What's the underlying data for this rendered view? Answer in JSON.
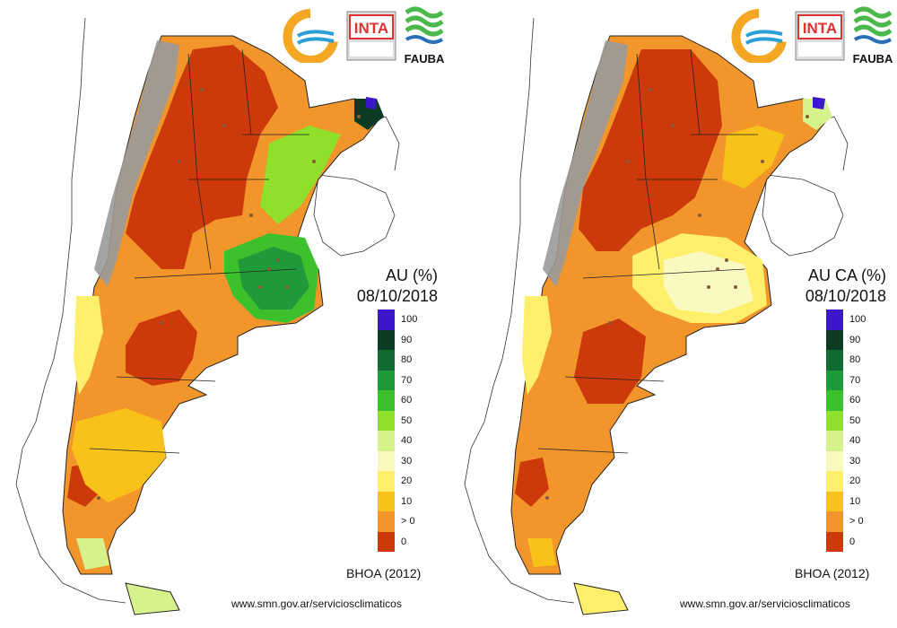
{
  "maps": [
    {
      "title": "AU (%)",
      "date": "08/10/2018",
      "source": "BHOA (2012)",
      "url": "www.smn.gov.ar/serviciosclimaticos"
    },
    {
      "title": "AU CA (%)",
      "date": "08/10/2018",
      "source": "BHOA (2012)",
      "url": "www.smn.gov.ar/serviciosclimaticos"
    }
  ],
  "logos": {
    "inta_text": "INTA",
    "fauba_text": "FAUBA"
  },
  "legend": {
    "title": "AU (%)",
    "classes": [
      {
        "label": "100",
        "color": "#3d18c8"
      },
      {
        "label": "90",
        "color": "#0c3d24"
      },
      {
        "label": "80",
        "color": "#0f6b32"
      },
      {
        "label": "70",
        "color": "#1f9a3a"
      },
      {
        "label": "60",
        "color": "#3cc02c"
      },
      {
        "label": "50",
        "color": "#8fe02a"
      },
      {
        "label": "40",
        "color": "#d6f28d"
      },
      {
        "label": "30",
        "color": "#fafac0"
      },
      {
        "label": "20",
        "color": "#ffef6a"
      },
      {
        "label": "10",
        "color": "#f9c21a"
      },
      {
        "label": "> 0",
        "color": "#f2962c"
      },
      {
        "label": "0",
        "color": "#cc3a0b"
      }
    ]
  },
  "colors": {
    "very_dry": "#cc3a0b",
    "dry": "#f2962c",
    "low": "#f9c21a",
    "mid_low": "#ffef6a",
    "mid": "#fafac0",
    "light_green": "#d6f28d",
    "green": "#3cc02c",
    "dark_green": "#1f9a3a",
    "very_dark_green": "#0f6b32",
    "blue": "#3d18c8",
    "mountains": "#9a9a9a",
    "border": "#222222"
  }
}
